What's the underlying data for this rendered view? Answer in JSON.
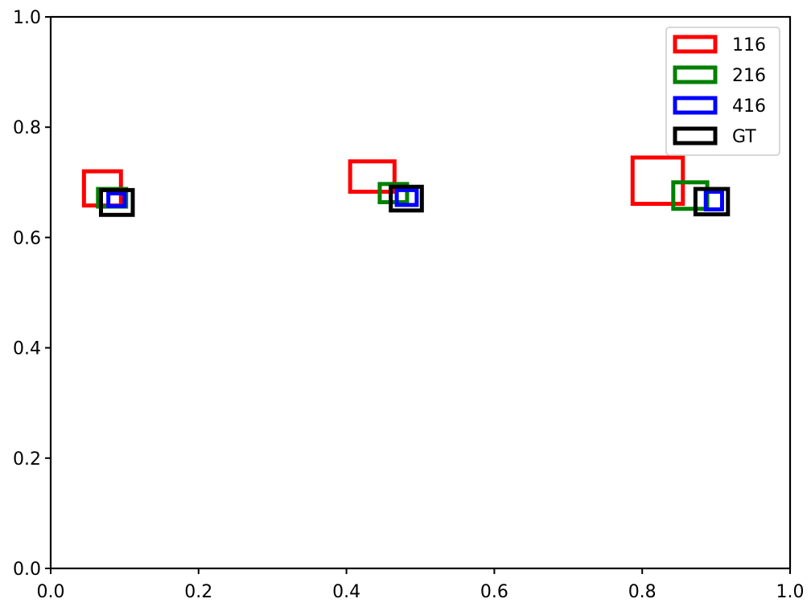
{
  "chart_data": {
    "type": "scatter",
    "title": "",
    "xlabel": "",
    "ylabel": "",
    "xlim": [
      0.0,
      1.0
    ],
    "ylim": [
      0.0,
      1.0
    ],
    "xticks": [
      "0.0",
      "0.2",
      "0.4",
      "0.6",
      "0.8",
      "1.0"
    ],
    "yticks": [
      "0.0",
      "0.2",
      "0.4",
      "0.6",
      "0.8",
      "1.0"
    ],
    "grid": false,
    "legend_position": "top-right",
    "marker": "square-box",
    "series": [
      {
        "name": "116",
        "color": "#ff0000",
        "boxes": [
          {
            "x0": 0.045,
            "x1": 0.095,
            "y0": 0.658,
            "y1": 0.72
          },
          {
            "x0": 0.405,
            "x1": 0.465,
            "y0": 0.683,
            "y1": 0.738
          },
          {
            "x0": 0.787,
            "x1": 0.855,
            "y0": 0.661,
            "y1": 0.745
          }
        ]
      },
      {
        "name": "216",
        "color": "#008000",
        "boxes": [
          {
            "x0": 0.064,
            "x1": 0.102,
            "y0": 0.656,
            "y1": 0.688
          },
          {
            "x0": 0.445,
            "x1": 0.482,
            "y0": 0.664,
            "y1": 0.697
          },
          {
            "x0": 0.842,
            "x1": 0.888,
            "y0": 0.652,
            "y1": 0.7
          }
        ]
      },
      {
        "name": "416",
        "color": "#0000ff",
        "boxes": [
          {
            "x0": 0.078,
            "x1": 0.1,
            "y0": 0.657,
            "y1": 0.68
          },
          {
            "x0": 0.468,
            "x1": 0.495,
            "y0": 0.659,
            "y1": 0.686
          },
          {
            "x0": 0.886,
            "x1": 0.908,
            "y0": 0.651,
            "y1": 0.683
          }
        ]
      },
      {
        "name": "GT",
        "color": "#000000",
        "boxes": [
          {
            "x0": 0.068,
            "x1": 0.111,
            "y0": 0.641,
            "y1": 0.686
          },
          {
            "x0": 0.46,
            "x1": 0.502,
            "y0": 0.649,
            "y1": 0.692
          },
          {
            "x0": 0.872,
            "x1": 0.916,
            "y0": 0.642,
            "y1": 0.688
          }
        ]
      }
    ]
  }
}
